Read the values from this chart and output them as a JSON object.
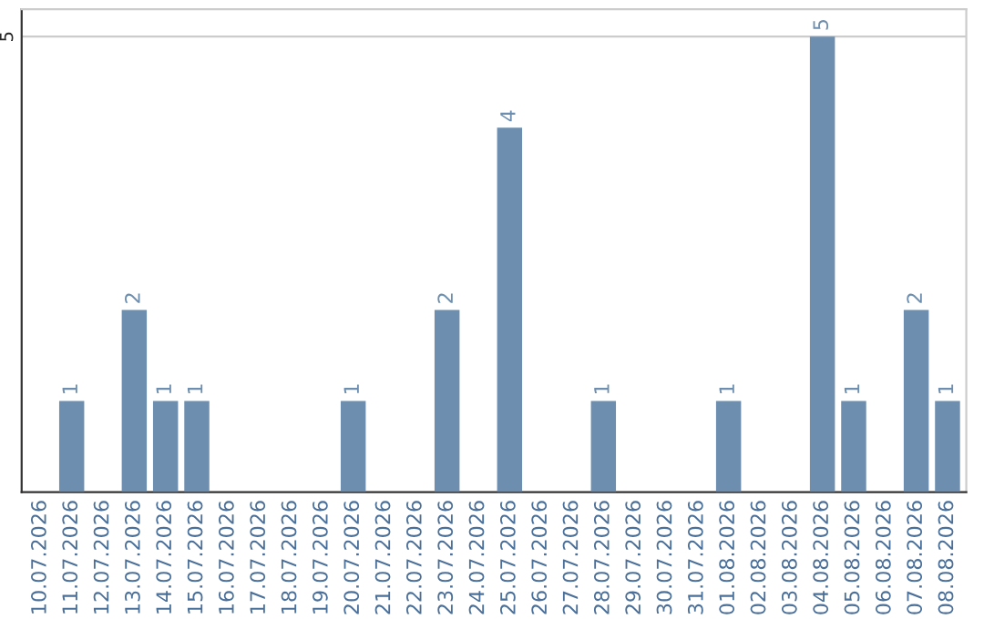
{
  "chart_data": {
    "type": "bar",
    "categories": [
      "10.07.2026",
      "11.07.2026",
      "12.07.2026",
      "13.07.2026",
      "14.07.2026",
      "15.07.2026",
      "16.07.2026",
      "17.07.2026",
      "18.07.2026",
      "19.07.2026",
      "20.07.2026",
      "21.07.2026",
      "22.07.2026",
      "23.07.2026",
      "24.07.2026",
      "25.07.2026",
      "26.07.2026",
      "27.07.2026",
      "28.07.2026",
      "29.07.2026",
      "30.07.2026",
      "31.07.2026",
      "01.08.2026",
      "02.08.2026",
      "03.08.2026",
      "04.08.2026",
      "05.08.2026",
      "06.08.2026",
      "07.08.2026",
      "08.08.2026"
    ],
    "values": [
      0,
      1,
      0,
      2,
      1,
      1,
      0,
      0,
      0,
      0,
      1,
      0,
      0,
      2,
      0,
      4,
      0,
      0,
      1,
      0,
      0,
      0,
      1,
      0,
      0,
      5,
      1,
      0,
      2,
      1
    ],
    "value_labels": [
      null,
      "1",
      null,
      "2",
      "1",
      "1",
      null,
      null,
      null,
      null,
      "1",
      null,
      null,
      "2",
      null,
      "4",
      null,
      null,
      "1",
      null,
      null,
      null,
      "1",
      null,
      null,
      "5",
      "1",
      null,
      "2",
      "1"
    ],
    "color": "#6d8eae",
    "ylim": [
      0,
      5.3
    ],
    "yticks": [
      5
    ],
    "grid": "y"
  }
}
